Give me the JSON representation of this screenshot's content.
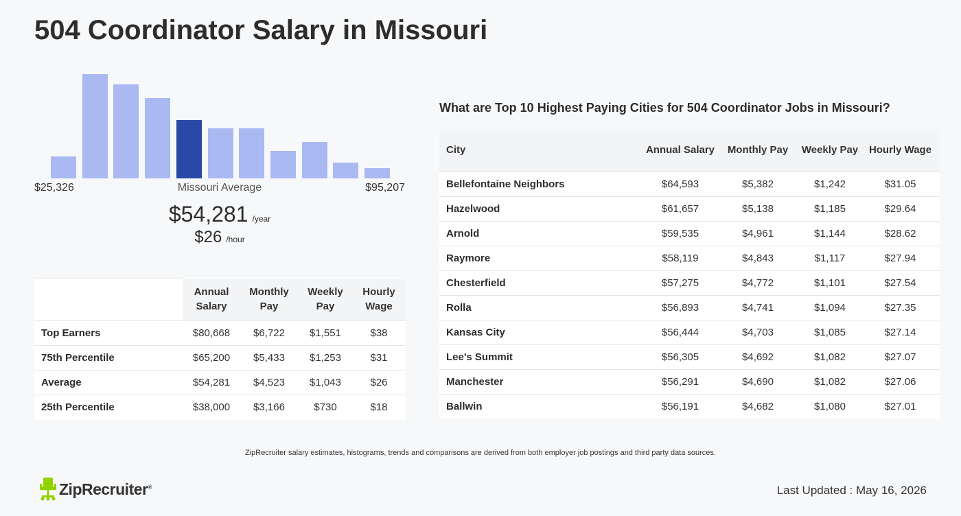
{
  "page": {
    "title": "504 Coordinator Salary in Missouri"
  },
  "histogram": {
    "min_label": "$25,326",
    "mid_label": "Missouri Average",
    "max_label": "$95,207",
    "bar_levels": [
      0.21,
      1.0,
      0.9,
      0.77,
      0.56,
      0.48,
      0.48,
      0.26,
      0.35,
      0.15,
      0.1
    ],
    "highlight_index": 4,
    "bar_color": "#aab9f1",
    "highlight_color": "#2a48a5"
  },
  "average": {
    "yearly": "$54,281",
    "yearly_unit": "/year",
    "hourly": "$26",
    "hourly_unit": "/hour"
  },
  "percentile_table": {
    "headers": [
      "",
      "Annual Salary",
      "Monthly Pay",
      "Weekly Pay",
      "Hourly Wage"
    ],
    "rows": [
      [
        "Top Earners",
        "$80,668",
        "$6,722",
        "$1,551",
        "$38"
      ],
      [
        "75th Percentile",
        "$65,200",
        "$5,433",
        "$1,253",
        "$31"
      ],
      [
        "Average",
        "$54,281",
        "$4,523",
        "$1,043",
        "$26"
      ],
      [
        "25th Percentile",
        "$38,000",
        "$3,166",
        "$730",
        "$18"
      ]
    ]
  },
  "cities": {
    "heading": "What are Top 10 Highest Paying Cities for 504 Coordinator Jobs in Missouri?",
    "headers": [
      "City",
      "Annual Salary",
      "Monthly Pay",
      "Weekly Pay",
      "Hourly Wage"
    ],
    "rows": [
      [
        "Bellefontaine Neighbors",
        "$64,593",
        "$5,382",
        "$1,242",
        "$31.05"
      ],
      [
        "Hazelwood",
        "$61,657",
        "$5,138",
        "$1,185",
        "$29.64"
      ],
      [
        "Arnold",
        "$59,535",
        "$4,961",
        "$1,144",
        "$28.62"
      ],
      [
        "Raymore",
        "$58,119",
        "$4,843",
        "$1,117",
        "$27.94"
      ],
      [
        "Chesterfield",
        "$57,275",
        "$4,772",
        "$1,101",
        "$27.54"
      ],
      [
        "Rolla",
        "$56,893",
        "$4,741",
        "$1,094",
        "$27.35"
      ],
      [
        "Kansas City",
        "$56,444",
        "$4,703",
        "$1,085",
        "$27.14"
      ],
      [
        "Lee's Summit",
        "$56,305",
        "$4,692",
        "$1,082",
        "$27.07"
      ],
      [
        "Manchester",
        "$56,291",
        "$4,690",
        "$1,082",
        "$27.06"
      ],
      [
        "Ballwin",
        "$56,191",
        "$4,682",
        "$1,080",
        "$27.01"
      ]
    ]
  },
  "footer": {
    "footnote": "ZipRecruiter salary estimates, histograms, trends and comparisons are derived from both employer job postings and third party data sources.",
    "logo_text": "ZipRecruiter",
    "logo_mark": "®",
    "logo_color": "#8fd400",
    "last_updated": "Last Updated : May 16, 2026"
  }
}
